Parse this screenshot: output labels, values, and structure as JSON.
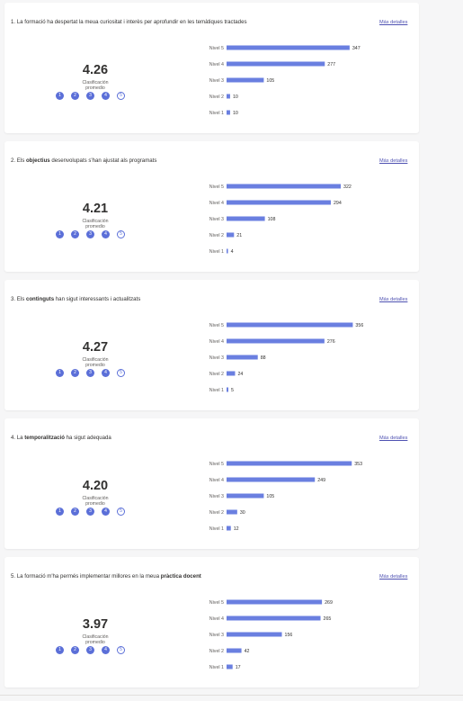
{
  "colors": {
    "bar": "#6a7fe0",
    "accent": "#5b6fd8",
    "link": "#4f52b2"
  },
  "details_label": "Más detalles",
  "avg_caption_line1": "Clasificación",
  "avg_caption_line2": "promedio",
  "chart_data": [
    {
      "type": "bar",
      "orientation": "horizontal",
      "title_parts": [
        {
          "t": "1. La formació ha despertat la meua curiositat i interès per aprofundir en les temàtiques tractades",
          "b": false
        }
      ],
      "average": "4.26",
      "categories": [
        "Nivel 5",
        "Nivel 4",
        "Nivel 3",
        "Nivel 2",
        "Nivel 1"
      ],
      "values": [
        347,
        277,
        105,
        10,
        10
      ],
      "xlim": [
        0,
        360
      ]
    },
    {
      "type": "bar",
      "orientation": "horizontal",
      "title_parts": [
        {
          "t": "2. Els ",
          "b": false
        },
        {
          "t": "objectius",
          "b": true
        },
        {
          "t": " desenvolupats s'han ajustat als programats",
          "b": false
        }
      ],
      "average": "4.21",
      "categories": [
        "Nivel 5",
        "Nivel 4",
        "Nivel 3",
        "Nivel 2",
        "Nivel 1"
      ],
      "values": [
        322,
        294,
        108,
        21,
        4
      ],
      "xlim": [
        0,
        360
      ]
    },
    {
      "type": "bar",
      "orientation": "horizontal",
      "title_parts": [
        {
          "t": "3. Els ",
          "b": false
        },
        {
          "t": "continguts",
          "b": true
        },
        {
          "t": " han sigut interessants i actualitzats",
          "b": false
        }
      ],
      "average": "4.27",
      "categories": [
        "Nivel 5",
        "Nivel 4",
        "Nivel 3",
        "Nivel 2",
        "Nivel 1"
      ],
      "values": [
        356,
        276,
        88,
        24,
        5
      ],
      "xlim": [
        0,
        360
      ]
    },
    {
      "type": "bar",
      "orientation": "horizontal",
      "title_parts": [
        {
          "t": "4. La ",
          "b": false
        },
        {
          "t": "temporalització",
          "b": true
        },
        {
          "t": " ha sigut adequada",
          "b": false
        }
      ],
      "average": "4.20",
      "categories": [
        "Nivel 5",
        "Nivel 4",
        "Nivel 3",
        "Nivel 2",
        "Nivel 1"
      ],
      "values": [
        353,
        249,
        105,
        30,
        12
      ],
      "xlim": [
        0,
        360
      ]
    },
    {
      "type": "bar",
      "orientation": "horizontal",
      "title_parts": [
        {
          "t": "5. La formació m'ha permés implementar millores en la meua ",
          "b": false
        },
        {
          "t": "pràctica docent",
          "b": true
        }
      ],
      "average": "3.97",
      "categories": [
        "Nivel 5",
        "Nivel 4",
        "Nivel 3",
        "Nivel 2",
        "Nivel 1"
      ],
      "values": [
        269,
        265,
        156,
        42,
        17
      ],
      "xlim": [
        0,
        360
      ]
    }
  ]
}
